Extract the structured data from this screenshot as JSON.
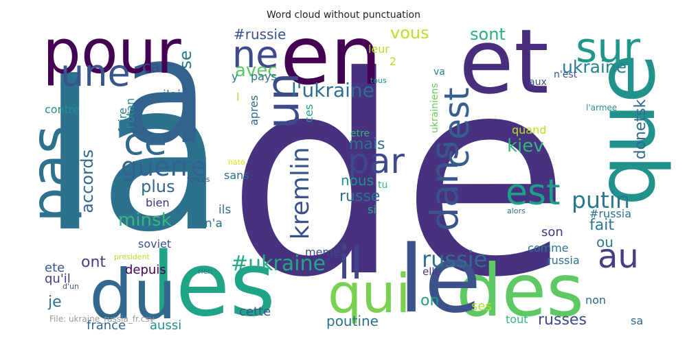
{
  "title": "Word cloud without punctuation",
  "footer": "File: ukraine_russia_fr.csv",
  "words": [
    {
      "text": "de",
      "color": "#46327e"
    },
    {
      "text": "la",
      "color": "#2c728e"
    },
    {
      "text": "a",
      "color": "#33638d"
    },
    {
      "text": "en",
      "color": "#440154"
    },
    {
      "text": "et",
      "color": "#472d7b"
    },
    {
      "text": "que",
      "color": "#21918c"
    },
    {
      "text": "pour",
      "color": "#440154"
    },
    {
      "text": "les",
      "color": "#20a486"
    },
    {
      "text": "des",
      "color": "#5ec962"
    },
    {
      "text": "du",
      "color": "#31688e"
    },
    {
      "text": "le",
      "color": "#3b528b"
    },
    {
      "text": "pas",
      "color": "#2c728e"
    },
    {
      "text": "qui",
      "color": "#7ad151"
    },
    {
      "text": "il",
      "color": "#414487"
    },
    {
      "text": "un",
      "color": "#3e4989"
    },
    {
      "text": "sur",
      "color": "#1f988b"
    },
    {
      "text": "une",
      "color": "#39568c"
    },
    {
      "text": "ne",
      "color": "#3e4989"
    },
    {
      "text": "ce",
      "color": "#31688e"
    },
    {
      "text": "dans",
      "color": "#3b528b"
    },
    {
      "text": "c'est",
      "color": "#355f8d"
    },
    {
      "text": "est",
      "color": "#1f9e89"
    },
    {
      "text": "au",
      "color": "#433e85"
    },
    {
      "text": "par",
      "color": "#3e4989"
    },
    {
      "text": "guerre",
      "color": "#33638d"
    },
    {
      "text": "kremlin",
      "color": "#3b528b"
    },
    {
      "text": "putin",
      "color": "#2a788e"
    },
    {
      "text": "russie",
      "color": "#2e6e8e"
    },
    {
      "text": "l'ukraine",
      "color": "#2e6e8e"
    },
    {
      "text": "#ukraine",
      "color": "#22a884"
    },
    {
      "text": "ukraine",
      "color": "#26828e"
    },
    {
      "text": "avec",
      "color": "#5ec962"
    },
    {
      "text": "vous",
      "color": "#bddf26"
    },
    {
      "text": "sont",
      "color": "#29af7f"
    },
    {
      "text": "#russie",
      "color": "#3b528b"
    },
    {
      "text": "ca",
      "color": "#3e4989"
    },
    {
      "text": "se",
      "color": "#2a788e"
    },
    {
      "text": "plus",
      "color": "#31688e"
    },
    {
      "text": "minsk",
      "color": "#35b779"
    },
    {
      "text": "accords",
      "color": "#31688e"
    },
    {
      "text": "mais",
      "color": "#2c728e"
    },
    {
      "text": "kiev",
      "color": "#35b779"
    },
    {
      "text": "nous",
      "color": "#21918c"
    },
    {
      "text": "russe",
      "color": "#2c728e"
    },
    {
      "text": "donetsk",
      "color": "#31688e"
    },
    {
      "text": "fait",
      "color": "#2a788e"
    },
    {
      "text": "ou",
      "color": "#2a788e"
    },
    {
      "text": "ont",
      "color": "#433e85"
    },
    {
      "text": "je",
      "color": "#2c728e"
    },
    {
      "text": "on",
      "color": "#1fa088"
    },
    {
      "text": "russes",
      "color": "#3e4989"
    },
    {
      "text": "poutine",
      "color": "#2c728e"
    },
    {
      "text": "cette",
      "color": "#39568c"
    },
    {
      "text": "aussi",
      "color": "#21918c"
    },
    {
      "text": "france",
      "color": "#31688e"
    },
    {
      "text": "ses",
      "color": "#b5de2b"
    },
    {
      "text": "non",
      "color": "#31688e"
    },
    {
      "text": "tout",
      "color": "#35b779"
    },
    {
      "text": "sa",
      "color": "#31688e"
    },
    {
      "text": "russia",
      "color": "#2c728e"
    },
    {
      "text": "comme",
      "color": "#2a788e"
    },
    {
      "text": "son",
      "color": "#443983"
    },
    {
      "text": "#russia",
      "color": "#2c728e"
    },
    {
      "text": "depuis",
      "color": "#440154"
    },
    {
      "text": "qu'il",
      "color": "#433e85"
    },
    {
      "text": "ete",
      "color": "#3b528b"
    },
    {
      "text": "bien",
      "color": "#46307e"
    },
    {
      "text": "soviet",
      "color": "#3b528b"
    },
    {
      "text": "n'a",
      "color": "#2c728e"
    },
    {
      "text": "ils",
      "color": "#2e6e8e"
    },
    {
      "text": "meme",
      "color": "#3e4989"
    },
    {
      "text": "sans",
      "color": "#31688e"
    },
    {
      "text": "j'ai",
      "color": "#31688e"
    },
    {
      "text": "contre",
      "color": "#21918c"
    },
    {
      "text": "faire",
      "color": "#2a788e"
    },
    {
      "text": "l'otan",
      "color": "#21918c"
    },
    {
      "text": "ces",
      "color": "#1fa088"
    },
    {
      "text": "apres",
      "color": "#31688e"
    },
    {
      "text": "y",
      "color": "#2a788e"
    },
    {
      "text": "pays",
      "color": "#2c728e"
    },
    {
      "text": "leur",
      "color": "#b5de2b"
    },
    {
      "text": "2",
      "color": "#b5de2b"
    },
    {
      "text": "tous",
      "color": "#21918c"
    },
    {
      "text": "va",
      "color": "#26828e"
    },
    {
      "text": "aux",
      "color": "#3b528b"
    },
    {
      "text": "n'est",
      "color": "#3b528b"
    },
    {
      "text": "l'armee",
      "color": "#21918c"
    },
    {
      "text": "ukrainiens",
      "color": "#6ccd5a"
    },
    {
      "text": "quand",
      "color": "#bddf26"
    },
    {
      "text": "etre",
      "color": "#35b779"
    },
    {
      "text": "tu",
      "color": "#35b779"
    },
    {
      "text": "si",
      "color": "#29af7f"
    },
    {
      "text": "l",
      "color": "#b5de2b"
    },
    {
      "text": "nato",
      "color": "#dde318"
    },
    {
      "text": "forces",
      "color": "#3b528b"
    },
    {
      "text": "alors",
      "color": "#2c728e"
    },
    {
      "text": "president",
      "color": "#b5de2b"
    },
    {
      "text": "rien",
      "color": "#2a788e"
    },
    {
      "text": "elle",
      "color": "#443983"
    },
    {
      "text": "d'un",
      "color": "#3b528b"
    }
  ]
}
